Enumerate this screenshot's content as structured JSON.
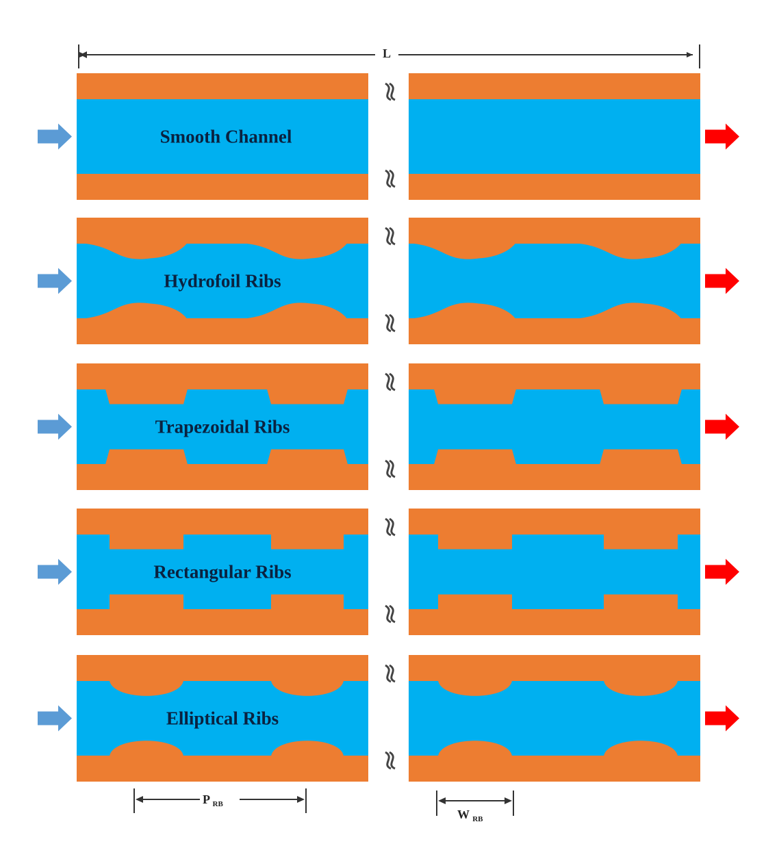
{
  "colors": {
    "wall": "#ED7D31",
    "fluid": "#00B0F0",
    "inlet_arrow": "#5B9BD5",
    "outlet_arrow": "#FF0000",
    "dimension_line": "#333333",
    "break_mark": "#444444"
  },
  "dimensions": {
    "length_label": "L",
    "pitch_label": "P",
    "pitch_subscript": "RB",
    "width_label": "W",
    "width_subscript": "RB"
  },
  "panels": [
    {
      "label": "Smooth Channel",
      "rib_shape": "none"
    },
    {
      "label": "Hydrofoil Ribs",
      "rib_shape": "hydrofoil"
    },
    {
      "label": "Trapezoidal Ribs",
      "rib_shape": "trapezoid"
    },
    {
      "label": "Rectangular Ribs",
      "rib_shape": "rectangle"
    },
    {
      "label": "Elliptical Ribs",
      "rib_shape": "ellipse"
    }
  ],
  "icons": {
    "inlet": "right-arrow-icon",
    "outlet": "right-arrow-icon",
    "break": "wavy-break-icon"
  }
}
